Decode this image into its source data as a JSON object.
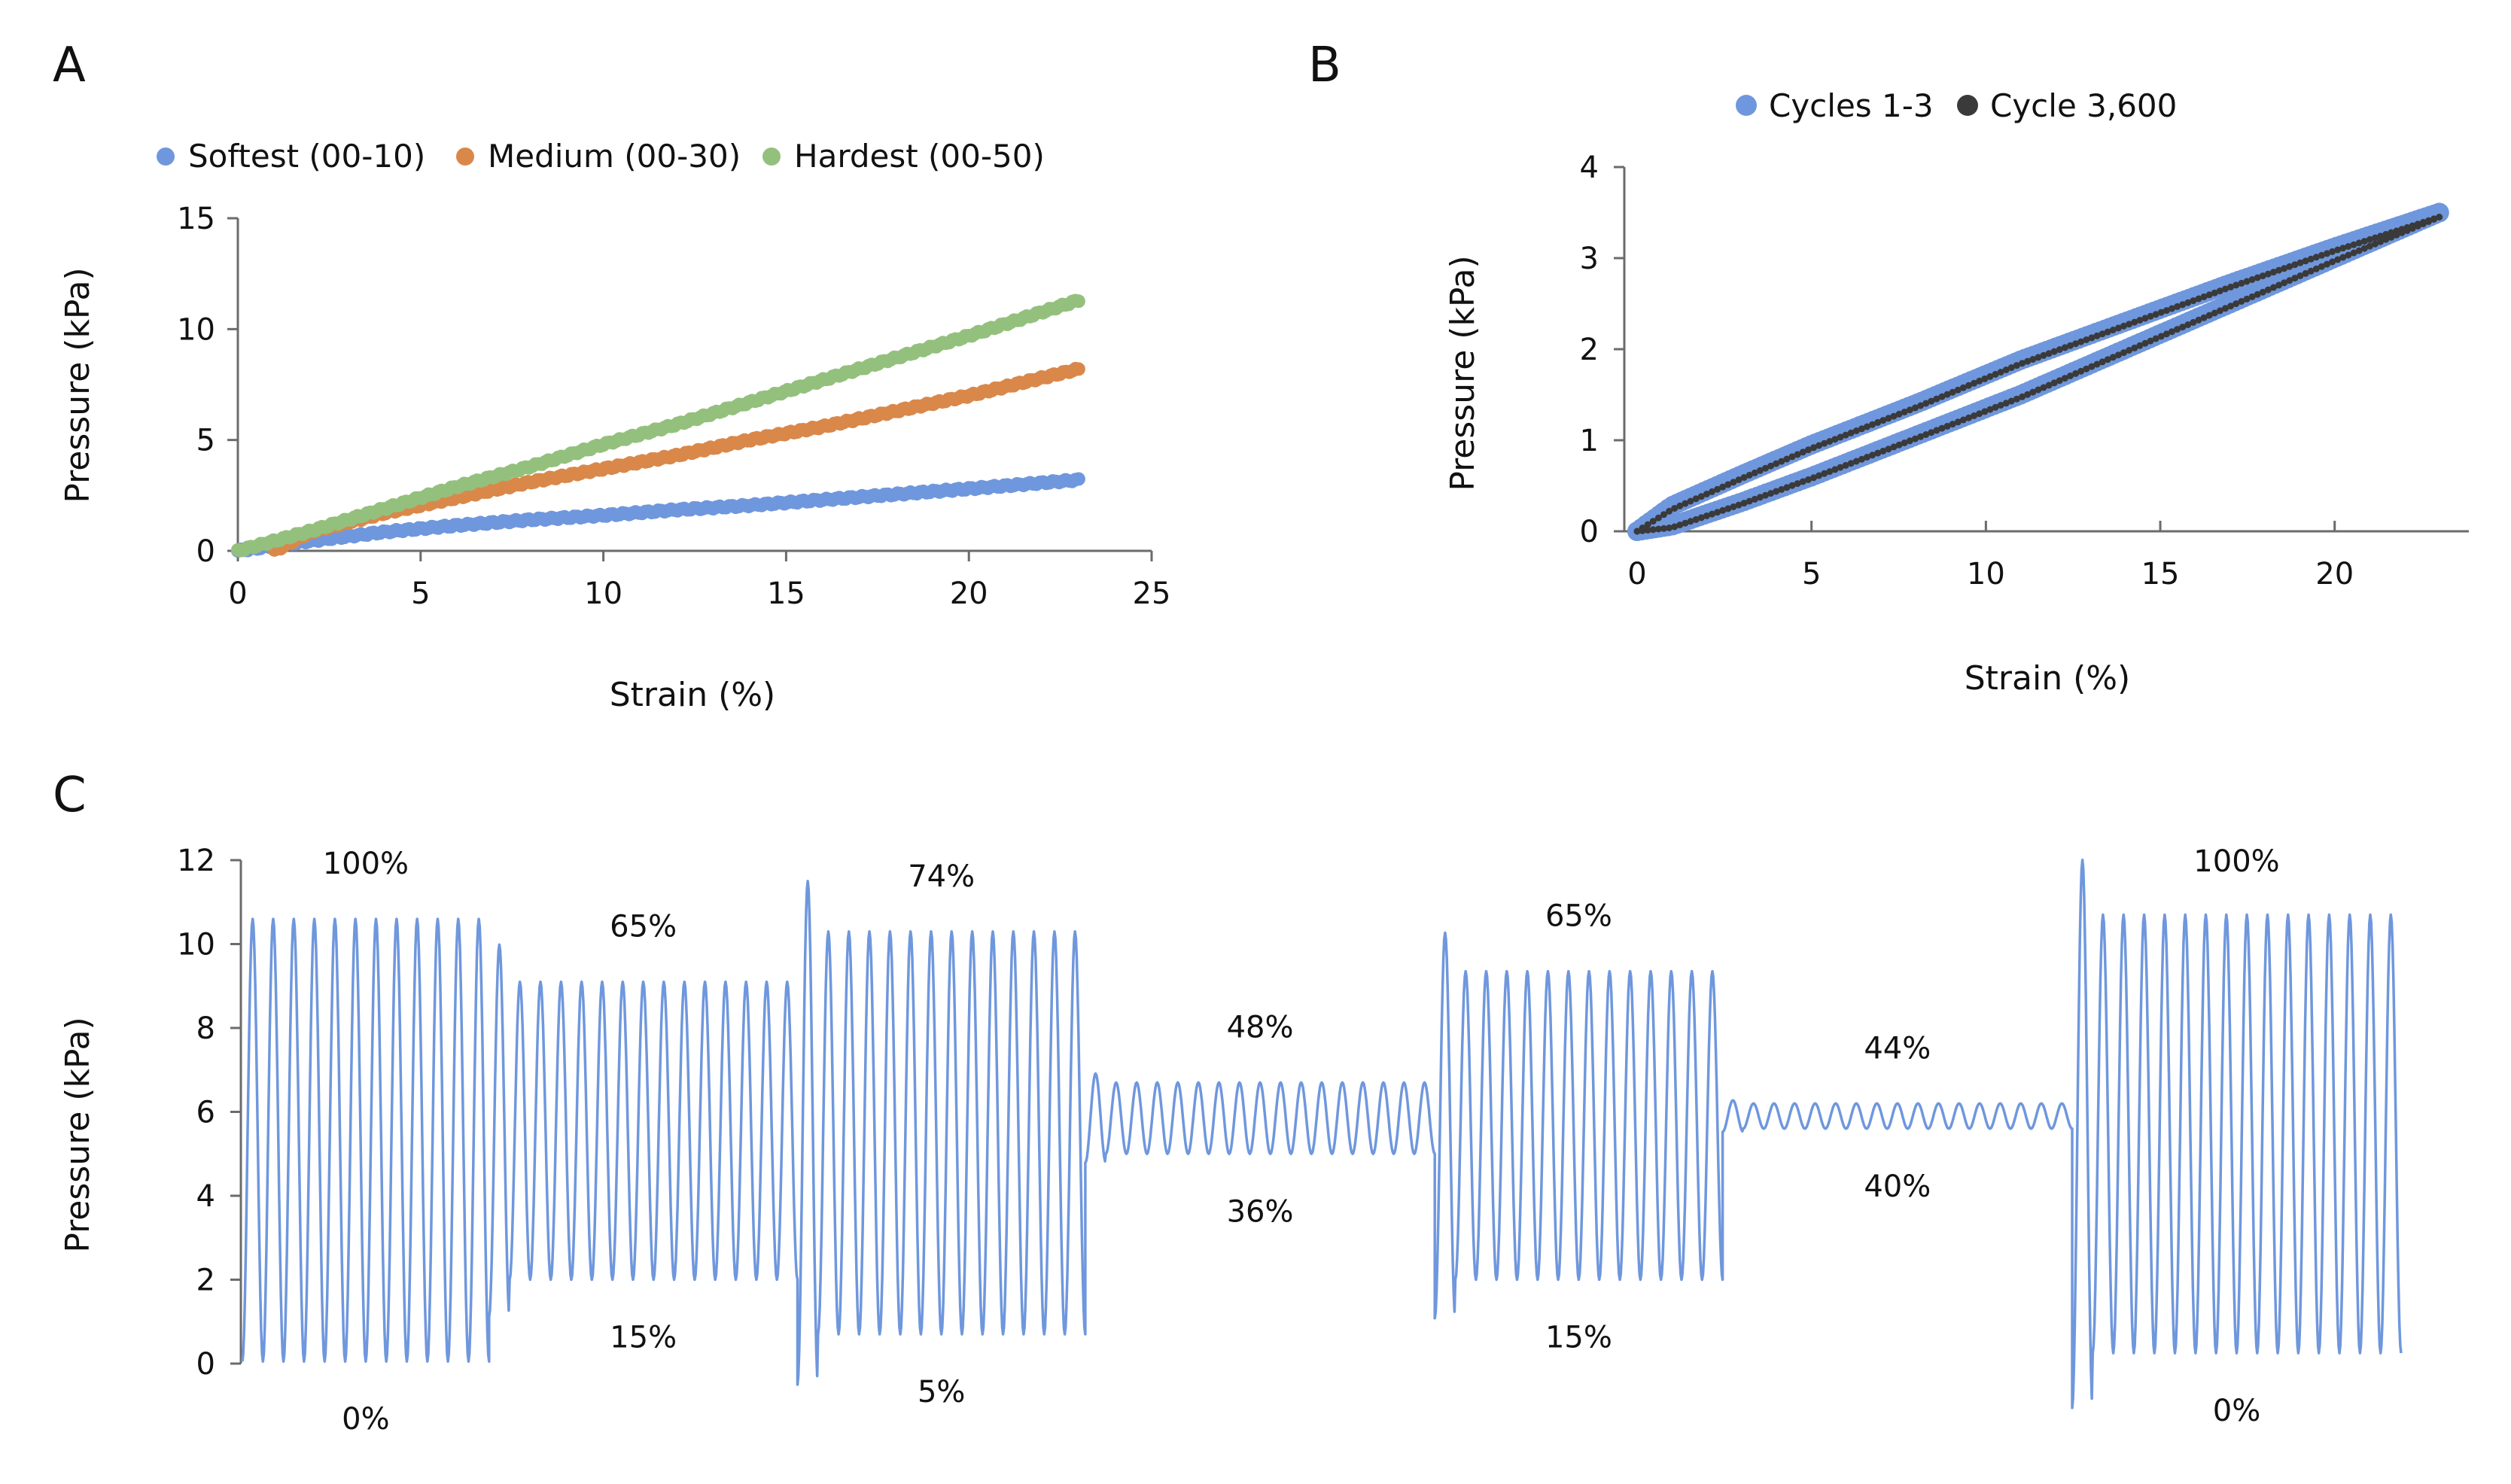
{
  "panels": [
    {
      "letter": "A",
      "chart_data": {
        "type": "scatter",
        "title": "",
        "xlabel": "Strain (%)",
        "ylabel": "Pressure (kPa)",
        "xlim": [
          0,
          25
        ],
        "ylim": [
          0,
          15
        ],
        "xticks": [
          "0",
          "5",
          "10",
          "15",
          "20",
          "25"
        ],
        "yticks": [
          "0",
          "5",
          "10",
          "15"
        ],
        "legend": "top",
        "series": [
          {
            "name": "Softest (00-10)",
            "color": "#6f97dd",
            "x": [
              0,
              2,
              4,
              6,
              8,
              10,
              12,
              14,
              16,
              18,
              20,
              23
            ],
            "y": [
              0,
              0.45,
              0.85,
              1.15,
              1.4,
              1.6,
              1.85,
              2.05,
              2.3,
              2.55,
              2.8,
              3.2
            ]
          },
          {
            "name": "Medium (00-30)",
            "color": "#d9884a",
            "x": [
              1,
              2,
              4,
              6,
              8,
              10,
              12,
              14,
              16,
              18,
              20,
              23
            ],
            "y": [
              0,
              0.85,
              1.7,
              2.4,
              3.1,
              3.7,
              4.3,
              5.0,
              5.6,
              6.3,
              7.0,
              8.2
            ]
          },
          {
            "name": "Hardest (00-50)",
            "color": "#94c07d",
            "x": [
              0,
              2,
              4,
              6,
              8,
              10,
              12,
              14,
              16,
              18,
              20,
              23
            ],
            "y": [
              0,
              0.9,
              1.9,
              2.9,
              3.8,
              4.8,
              5.7,
              6.7,
              7.7,
              8.7,
              9.7,
              11.3
            ]
          }
        ]
      }
    },
    {
      "letter": "B",
      "chart_data": {
        "type": "scatter",
        "title": "",
        "xlabel": "Strain (%)",
        "ylabel": "Pressure (kPa)",
        "xlim": [
          0,
          23.5
        ],
        "ylim": [
          0,
          4
        ],
        "xticks": [
          "0",
          "5",
          "10",
          "15",
          "20"
        ],
        "yticks": [
          "0",
          "1",
          "2",
          "3",
          "4"
        ],
        "legend": "top",
        "series": [
          {
            "name": "Cycles 1-3",
            "color": "#6f97dd",
            "loading": {
              "x": [
                0,
                1,
                3,
                5,
                8,
                11,
                14,
                17,
                20,
                23
              ],
              "y": [
                0,
                0.06,
                0.32,
                0.6,
                1.05,
                1.5,
                2.0,
                2.5,
                3.0,
                3.5
              ]
            },
            "unloading": {
              "x": [
                23,
                20,
                17,
                14,
                11,
                8,
                5,
                3,
                1,
                0
              ],
              "y": [
                3.5,
                3.12,
                2.72,
                2.3,
                1.88,
                1.4,
                0.95,
                0.62,
                0.28,
                0
              ]
            }
          },
          {
            "name": "Cycle 3,600",
            "color": "#3a3a3a",
            "loading": {
              "x": [
                0,
                1,
                3,
                5,
                8,
                11,
                14,
                17,
                20,
                23
              ],
              "y": [
                0,
                0.04,
                0.3,
                0.58,
                1.02,
                1.47,
                1.97,
                2.47,
                2.97,
                3.45
              ]
            },
            "unloading": {
              "x": [
                23,
                20,
                17,
                14,
                11,
                8,
                5,
                3,
                1,
                0
              ],
              "y": [
                3.45,
                3.08,
                2.68,
                2.26,
                1.84,
                1.36,
                0.91,
                0.58,
                0.24,
                0
              ]
            }
          }
        ]
      }
    },
    {
      "letter": "C",
      "chart_data": {
        "type": "line",
        "title": "",
        "xlabel": "",
        "ylabel": "Pressure (kPa)",
        "ylim": [
          0,
          12
        ],
        "yticks": [
          "0",
          "2",
          "4",
          "6",
          "8",
          "10",
          "12"
        ],
        "color": "#6f97dd",
        "segments": [
          {
            "cycles": 12,
            "max": 10.6,
            "min": 0.05,
            "top_label": "100%",
            "bottom_label": "0%"
          },
          {
            "cycles": 15,
            "max": 9.1,
            "min": 2.0,
            "top_label": "65%",
            "bottom_label": "15%"
          },
          {
            "cycles": 14,
            "max": 10.3,
            "min": 0.7,
            "top_label": "74%",
            "bottom_label": "5%"
          },
          {
            "cycles": 17,
            "max": 6.7,
            "min": 5.0,
            "top_label": "48%",
            "bottom_label": "36%"
          },
          {
            "cycles": 14,
            "max": 9.35,
            "min": 2.0,
            "top_label": "65%",
            "bottom_label": "15%"
          },
          {
            "cycles": 17,
            "max": 6.2,
            "min": 5.6,
            "top_label": "44%",
            "bottom_label": "40%"
          },
          {
            "cycles": 16,
            "max": 10.7,
            "min": 0.25,
            "top_label": "100%",
            "bottom_label": "0%"
          }
        ]
      }
    }
  ]
}
